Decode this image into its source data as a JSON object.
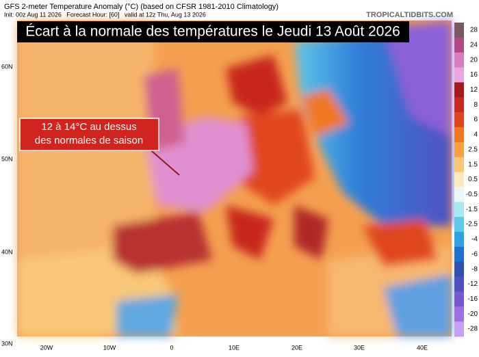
{
  "header": {
    "title": "GFS 2-meter Temperature Anomaly (°C) (based on CFSR 1981-2010 Climatology)",
    "subtitle": "Init: 00z Aug 11 2026   Forecast Hour: [60]   valid at 12z Thu, Aug 13 2026",
    "source": "TROPICALTIDBITS.COM"
  },
  "banner": "Écart à la normale des températures le Jeudi 13 Août 2026",
  "annotation": [
    "12 à 14°C au dessus",
    "des normales de saison"
  ],
  "latitude_labels": [
    "60N",
    "50N",
    "40N",
    "30N"
  ],
  "longitude_labels": [
    "20W",
    "10W",
    "0",
    "10E",
    "20E",
    "30E",
    "40E"
  ],
  "colorbar": {
    "labels": [
      28,
      24,
      20,
      16,
      12,
      8,
      6,
      4,
      2.5,
      1.5,
      0.5,
      -0.5,
      -1.5,
      -2.5,
      -4,
      -6,
      -8,
      -12,
      -16,
      -20,
      -28
    ],
    "colors": [
      "#7b5860",
      "#b04a86",
      "#d77cc0",
      "#eaa6dc",
      "#a31a1a",
      "#c8281e",
      "#e0461e",
      "#f07820",
      "#f8a040",
      "#f8c878",
      "#fbe8c0",
      "#e8f8f8",
      "#a8e8f0",
      "#60c8e8",
      "#30a0e0",
      "#2070d0",
      "#3050b0",
      "#5050c0",
      "#7858d0",
      "#a070e0",
      "#c8a0f0"
    ]
  }
}
